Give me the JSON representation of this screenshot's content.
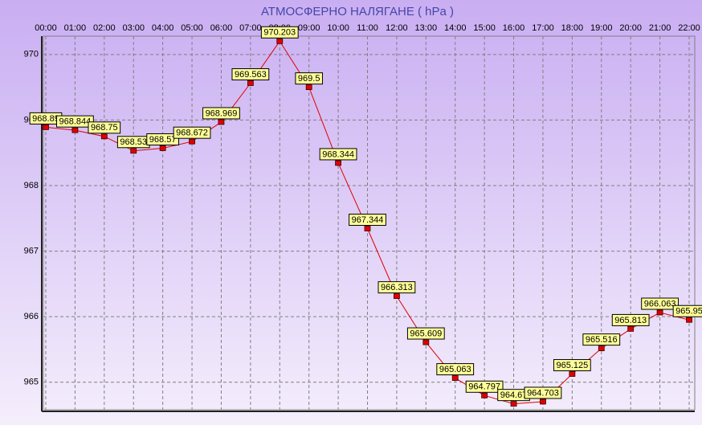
{
  "chart_data": {
    "type": "line",
    "title": "АТМОСФЕРНО НАЛЯГАНЕ  ( hPa )",
    "categories": [
      "00:00",
      "01:00",
      "02:00",
      "03:00",
      "04:00",
      "05:00",
      "06:00",
      "07:00",
      "08:00",
      "09:00",
      "10:00",
      "11:00",
      "12:00",
      "13:00",
      "14:00",
      "15:00",
      "16:00",
      "17:00",
      "18:00",
      "19:00",
      "20:00",
      "21:00",
      "22:00"
    ],
    "series": [
      {
        "name": "АТМОСФЕРНО НАЛЯГАНЕ",
        "color": "#e00000",
        "values": [
          968.89,
          968.844,
          968.75,
          968.53,
          968.57,
          968.672,
          968.969,
          969.563,
          970.203,
          969.5,
          968.344,
          967.344,
          966.313,
          965.609,
          965.063,
          964.797,
          964.67,
          964.703,
          965.125,
          965.516,
          965.813,
          966.063,
          965.95
        ]
      }
    ],
    "ylim": [
      964.58,
      970.28
    ],
    "yticks": [
      965,
      966,
      967,
      968,
      969,
      970
    ],
    "grid": true
  }
}
